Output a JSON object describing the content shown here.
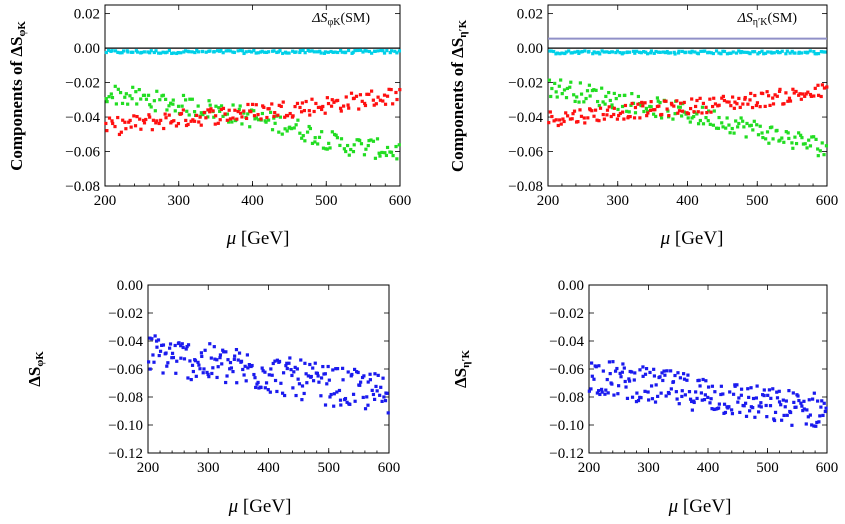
{
  "chart_data": [
    {
      "type": "scatter",
      "panel": "top-left",
      "ylabel": "Components of ΔSφK",
      "ylabel_prefix": "Components of",
      "ylabel_symbol": "ΔS",
      "ylabel_sub": "φK",
      "xlabel": "μ [GeV]",
      "xlabel_mu": "μ",
      "xlabel_unit": "[GeV]",
      "xlim": [
        200,
        600
      ],
      "ylim": [
        -0.08,
        0.025
      ],
      "xticks": [
        200,
        300,
        400,
        500,
        600
      ],
      "xtick_labels": [
        "200",
        "300",
        "400",
        "500",
        "600"
      ],
      "yticks": [
        0.02,
        0.0,
        -0.02,
        -0.04,
        -0.06,
        -0.08
      ],
      "ytick_labels": [
        "0.02",
        "0.00",
        "−0.02",
        "−0.04",
        "−0.06",
        "−0.08"
      ],
      "annotation": "ΔSφK(SM)",
      "annotation_symbol": "ΔS",
      "annotation_sub": "φK",
      "annotation_tail": "(SM)",
      "sm_line": null,
      "series": [
        {
          "name": "cyan",
          "color": "#00d0e8",
          "trend": [
            [
              200,
              -0.0022
            ],
            [
              600,
              -0.0022
            ]
          ],
          "spread": 0.0007
        },
        {
          "name": "green",
          "color": "#22dd22",
          "trend": [
            [
              200,
              -0.026
            ],
            [
              350,
              -0.036
            ],
            [
              450,
              -0.045
            ],
            [
              520,
              -0.056
            ],
            [
              600,
              -0.06
            ]
          ],
          "spread": 0.0045
        },
        {
          "name": "red",
          "color": "#ff1010",
          "trend": [
            [
              200,
              -0.046
            ],
            [
              300,
              -0.041
            ],
            [
              400,
              -0.037
            ],
            [
              500,
              -0.033
            ],
            [
              600,
              -0.027
            ]
          ],
          "spread": 0.004
        }
      ]
    },
    {
      "type": "scatter",
      "panel": "top-right",
      "ylabel": "Components of ΔSη′K",
      "ylabel_prefix": "Components of",
      "ylabel_symbol": "ΔS",
      "ylabel_sub": "η′K",
      "xlabel": "μ [GeV]",
      "xlabel_mu": "μ",
      "xlabel_unit": "[GeV]",
      "xlim": [
        200,
        600
      ],
      "ylim": [
        -0.08,
        0.025
      ],
      "xticks": [
        200,
        300,
        400,
        500,
        600
      ],
      "xtick_labels": [
        "200",
        "300",
        "400",
        "500",
        "600"
      ],
      "yticks": [
        0.02,
        0.0,
        -0.02,
        -0.04,
        -0.06,
        -0.08
      ],
      "ytick_labels": [
        "0.02",
        "0.00",
        "−0.02",
        "−0.04",
        "−0.06",
        "−0.08"
      ],
      "annotation": "ΔSη′K(SM)",
      "annotation_symbol": "ΔS",
      "annotation_sub": "η′K",
      "annotation_tail": "(SM)",
      "sm_line": {
        "y": 0.0055,
        "color": "#9090c8"
      },
      "series": [
        {
          "name": "cyan",
          "color": "#00d0e8",
          "trend": [
            [
              200,
              -0.0025
            ],
            [
              600,
              -0.0025
            ]
          ],
          "spread": 0.0007
        },
        {
          "name": "green",
          "color": "#22dd22",
          "trend": [
            [
              200,
              -0.022
            ],
            [
              350,
              -0.034
            ],
            [
              450,
              -0.042
            ],
            [
              520,
              -0.05
            ],
            [
              600,
              -0.058
            ]
          ],
          "spread": 0.0045
        },
        {
          "name": "red",
          "color": "#ff1010",
          "trend": [
            [
              200,
              -0.041
            ],
            [
              300,
              -0.037
            ],
            [
              400,
              -0.034
            ],
            [
              500,
              -0.03
            ],
            [
              600,
              -0.025
            ]
          ],
          "spread": 0.0035
        }
      ]
    },
    {
      "type": "scatter",
      "panel": "bottom-left",
      "ylabel": "ΔSφK",
      "ylabel_prefix": "",
      "ylabel_symbol": "ΔS",
      "ylabel_sub": "φK",
      "xlabel": "μ [GeV]",
      "xlabel_mu": "μ",
      "xlabel_unit": "[GeV]",
      "xlim": [
        200,
        600
      ],
      "ylim": [
        -0.12,
        0.0
      ],
      "xticks": [
        200,
        300,
        400,
        500,
        600
      ],
      "xtick_labels": [
        "200",
        "300",
        "400",
        "500",
        "600"
      ],
      "yticks": [
        0.0,
        -0.02,
        -0.04,
        -0.06,
        -0.08,
        -0.1,
        -0.12
      ],
      "ytick_labels": [
        "0.00",
        "−0.02",
        "−0.04",
        "−0.06",
        "−0.08",
        "−0.10",
        "−0.12"
      ],
      "annotation": "",
      "sm_line": null,
      "series": [
        {
          "name": "total",
          "color": "#1a1aee",
          "trend": [
            [
              200,
              -0.048
            ],
            [
              300,
              -0.056
            ],
            [
              400,
              -0.063
            ],
            [
              500,
              -0.072
            ],
            [
              600,
              -0.078
            ]
          ],
          "spread": 0.011
        }
      ]
    },
    {
      "type": "scatter",
      "panel": "bottom-right",
      "ylabel": "ΔSη′K",
      "ylabel_prefix": "",
      "ylabel_symbol": "ΔS",
      "ylabel_sub": "η′K",
      "xlabel": "μ [GeV]",
      "xlabel_mu": "μ",
      "xlabel_unit": "[GeV]",
      "xlim": [
        200,
        600
      ],
      "ylim": [
        -0.12,
        0.0
      ],
      "xticks": [
        200,
        300,
        400,
        500,
        600
      ],
      "xtick_labels": [
        "200",
        "300",
        "400",
        "500",
        "600"
      ],
      "yticks": [
        0.0,
        -0.02,
        -0.04,
        -0.06,
        -0.08,
        -0.1,
        -0.12
      ],
      "ytick_labels": [
        "0.00",
        "−0.02",
        "−0.04",
        "−0.06",
        "−0.08",
        "−0.10",
        "−0.12"
      ],
      "annotation": "",
      "sm_line": null,
      "series": [
        {
          "name": "total",
          "color": "#1a1aee",
          "trend": [
            [
              200,
              -0.064
            ],
            [
              300,
              -0.072
            ],
            [
              400,
              -0.078
            ],
            [
              500,
              -0.086
            ],
            [
              600,
              -0.09
            ]
          ],
          "spread": 0.01
        }
      ]
    }
  ]
}
